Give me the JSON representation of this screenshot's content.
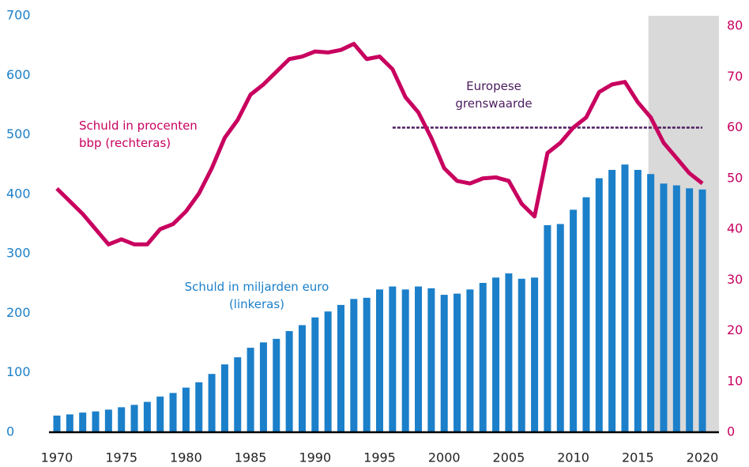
{
  "chart_data": {
    "type": "bar_line",
    "x": [
      1970,
      1971,
      1972,
      1973,
      1974,
      1975,
      1976,
      1977,
      1978,
      1979,
      1980,
      1981,
      1982,
      1983,
      1984,
      1985,
      1986,
      1987,
      1988,
      1989,
      1990,
      1991,
      1992,
      1993,
      1994,
      1995,
      1996,
      1997,
      1998,
      1999,
      2000,
      2001,
      2002,
      2003,
      2004,
      2005,
      2006,
      2007,
      2008,
      2009,
      2010,
      2011,
      2012,
      2013,
      2014,
      2015,
      2016,
      2017,
      2018,
      2019,
      2020
    ],
    "series": [
      {
        "name": "Schuld in miljarden euro (linkeras)",
        "type": "bar",
        "color": "#1b7fc9",
        "axis": "y",
        "values": [
          28,
          30,
          33,
          35,
          38,
          42,
          46,
          51,
          60,
          66,
          75,
          84,
          98,
          114,
          126,
          142,
          151,
          157,
          170,
          180,
          193,
          203,
          214,
          224,
          226,
          240,
          245,
          240,
          245,
          242,
          231,
          233,
          240,
          251,
          260,
          267,
          258,
          260,
          348,
          350,
          374,
          395,
          427,
          441,
          450,
          441,
          434,
          418,
          415,
          410,
          408
        ]
      },
      {
        "name": "Schuld in procenten bbp (rechteras)",
        "type": "line",
        "color": "#c8005f",
        "axis": "y2",
        "values": [
          48,
          45.5,
          43,
          40,
          37,
          38,
          37,
          37,
          40,
          41,
          43.5,
          47,
          52,
          58,
          61.5,
          66.5,
          68.5,
          71,
          73.5,
          74,
          75,
          74.8,
          75.3,
          76.5,
          73.5,
          74,
          71.5,
          66,
          63,
          58,
          52,
          49.5,
          49,
          50,
          50.2,
          49.5,
          45,
          42.5,
          55,
          57,
          60,
          62,
          67,
          68.5,
          69,
          65,
          62,
          57,
          54,
          51,
          49
        ]
      }
    ],
    "reference_line": {
      "label": "Europese grenswaarde",
      "value": 60,
      "start": 1996,
      "end": 2020,
      "color": "#4b1c5e"
    },
    "shaded_from": 2016,
    "shade_color": "#d9d9d9",
    "xticks": [
      1970,
      1975,
      1980,
      1985,
      1990,
      1995,
      2000,
      2005,
      2010,
      2015,
      2020
    ],
    "ylim": [
      0,
      700
    ],
    "yticks": [
      0,
      100,
      200,
      300,
      400,
      500,
      600,
      700
    ],
    "y2lim": [
      0,
      80
    ],
    "y2ticks": [
      0,
      10,
      20,
      30,
      40,
      50,
      60,
      70,
      80
    ]
  }
}
